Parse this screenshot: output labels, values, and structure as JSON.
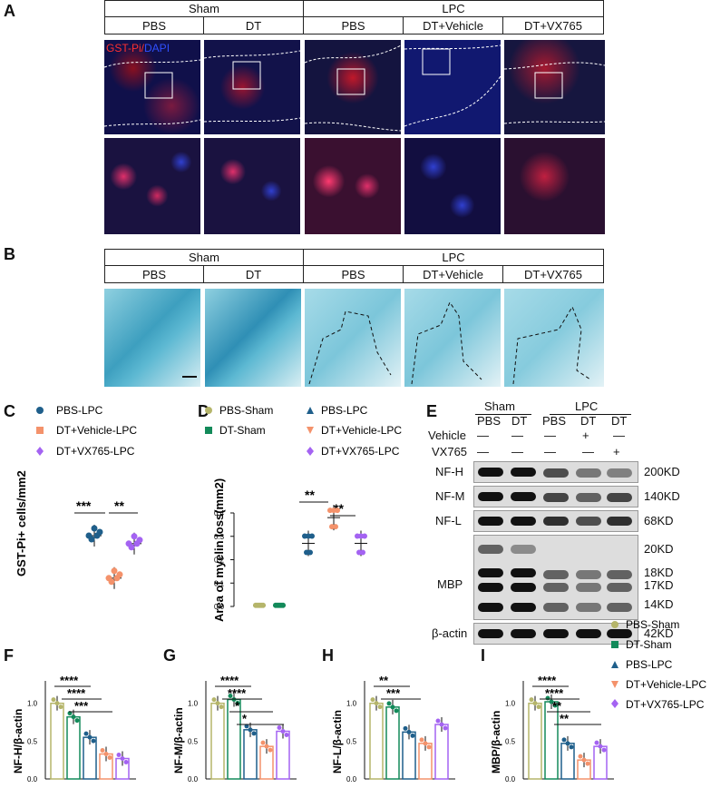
{
  "panel_labels": [
    "A",
    "B",
    "C",
    "D",
    "E",
    "F",
    "G",
    "H",
    "I"
  ],
  "panelA": {
    "group_headers": [
      "Sham",
      "LPC"
    ],
    "sub_headers": [
      "PBS",
      "DT",
      "PBS",
      "DT+Vehicle",
      "DT+VX765"
    ],
    "stain_label_red": "GST-Pi",
    "stain_label_sep": "/",
    "stain_label_blue": "DAPI"
  },
  "panelB": {
    "group_headers": [
      "Sham",
      "LPC"
    ],
    "sub_headers": [
      "PBS",
      "DT",
      "PBS",
      "DT+Vehicle",
      "DT+VX765"
    ]
  },
  "panelC": {
    "legend": [
      "PBS-LPC",
      "DT+Vehicle-LPC",
      "DT+VX765-LPC"
    ],
    "ylabel": "GST-Pi+ cells/mm2",
    "sig": [
      "***",
      "**"
    ],
    "colors": [
      "#1f5f8b",
      "#f4926b",
      "#a463f2"
    ]
  },
  "panelD": {
    "legend_left": [
      "PBS-Sham",
      "DT-Sham"
    ],
    "legend_right": [
      "PBS-LPC",
      "DT+Vehicle-LPC",
      "DT+VX765-LPC"
    ],
    "ylabel": "Area of myelin loss(mm2)",
    "yticks": [
      "0.0",
      "0.1",
      "0.2",
      "0.3",
      "0.4"
    ],
    "sig": [
      "**",
      "**"
    ]
  },
  "panelE": {
    "groups": [
      "Sham",
      "LPC"
    ],
    "lanes": [
      "PBS",
      "DT",
      "PBS",
      "DT",
      "DT"
    ],
    "row_vehicle_label": "Vehicle",
    "row_vx_label": "VX765",
    "vehicle_marks": [
      "—",
      "—",
      "—",
      "+",
      "—"
    ],
    "vx_marks": [
      "—",
      "—",
      "—",
      "—",
      "+"
    ],
    "proteins": [
      "NF-H",
      "NF-M",
      "NF-L",
      "MBP",
      "β-actin"
    ],
    "sizes": [
      "200KD",
      "140KD",
      "68KD",
      "20KD",
      "18KD",
      "17KD",
      "14KD",
      "42KD"
    ]
  },
  "bar_panels": [
    {
      "ylabel": "NF-H/β-actin",
      "sig": [
        "****",
        "****",
        "***"
      ]
    },
    {
      "ylabel": "NF-M/β-actin",
      "sig": [
        "****",
        "****",
        "*",
        "*"
      ]
    },
    {
      "ylabel": "NF-L/β-actin",
      "sig": [
        "**",
        "***"
      ]
    },
    {
      "ylabel": "MBP/β-actin",
      "sig": [
        "****",
        "****",
        "**",
        "**"
      ]
    }
  ],
  "bar_yticks": [
    "0.0",
    "0.5",
    "1.0"
  ],
  "bar_legend": [
    "PBS-Sham",
    "DT-Sham",
    "PBS-LPC",
    "DT+Vehicle-LPC",
    "DT+VX765-LPC"
  ],
  "chart_data": [
    {
      "type": "scatter",
      "title": "GST-Pi+ cells",
      "categories": [
        "PBS-LPC",
        "DT+Vehicle-LPC",
        "DT+VX765-LPC"
      ],
      "values": [
        190,
        73,
        168
      ],
      "ylabel": "GST-Pi+ cells/mm2"
    },
    {
      "type": "scatter",
      "categories": [
        "PBS-Sham",
        "DT-Sham",
        "PBS-LPC",
        "DT+Vehicle-LPC",
        "DT+VX765-LPC"
      ],
      "values": [
        0.005,
        0.005,
        0.27,
        0.38,
        0.27
      ],
      "ylim": [
        0,
        0.4
      ],
      "ylabel": "Area of myelin loss(mm2)"
    },
    {
      "type": "bar",
      "categories": [
        "PBS-Sham",
        "DT-Sham",
        "PBS-LPC",
        "DT+Vehicle-LPC",
        "DT+VX765-LPC"
      ],
      "values": [
        1.0,
        0.82,
        0.55,
        0.33,
        0.27
      ],
      "ylim": [
        0,
        1.2
      ],
      "ylabel": "NF-H/β-actin"
    },
    {
      "type": "bar",
      "categories": [
        "PBS-Sham",
        "DT-Sham",
        "PBS-LPC",
        "DT+Vehicle-LPC",
        "DT+VX765-LPC"
      ],
      "values": [
        1.0,
        1.05,
        0.65,
        0.43,
        0.63
      ],
      "ylim": [
        0,
        1.2
      ],
      "ylabel": "NF-M/β-actin"
    },
    {
      "type": "bar",
      "categories": [
        "PBS-Sham",
        "DT-Sham",
        "PBS-LPC",
        "DT+Vehicle-LPC",
        "DT+VX765-LPC"
      ],
      "values": [
        1.0,
        0.95,
        0.62,
        0.47,
        0.72
      ],
      "ylim": [
        0,
        1.2
      ],
      "ylabel": "NF-L/β-actin"
    },
    {
      "type": "bar",
      "categories": [
        "PBS-Sham",
        "DT-Sham",
        "PBS-LPC",
        "DT+Vehicle-LPC",
        "DT+VX765-LPC"
      ],
      "values": [
        1.0,
        1.02,
        0.47,
        0.25,
        0.43
      ],
      "ylim": [
        0,
        1.2
      ],
      "ylabel": "MBP/β-actin"
    }
  ],
  "colors": {
    "pbs_sham": "#b5b56a",
    "dt_sham": "#138a5a",
    "pbs_lpc": "#1f5f8b",
    "dt_vehicle": "#f4926b",
    "dt_vx765": "#a463f2"
  }
}
